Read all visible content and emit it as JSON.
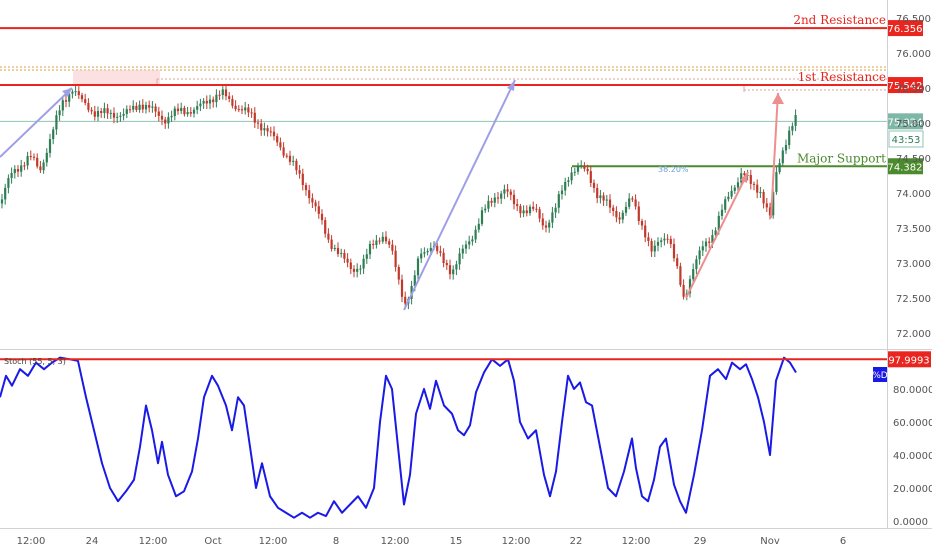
{
  "chart_data": [
    {
      "type": "candlestick",
      "panel": "price",
      "y_axis_ticks": [
        "76.500",
        "76.000",
        "75.500",
        "75.000",
        "74.500",
        "74.000",
        "73.500",
        "73.000",
        "72.500",
        "72.000"
      ],
      "y_tick_values": [
        76.5,
        76.0,
        75.5,
        75.0,
        74.5,
        74.0,
        73.5,
        73.0,
        72.5,
        72.0
      ],
      "ylim": [
        71.84,
        76.58
      ],
      "x_axis_ticks": [
        "12:00",
        "24",
        "12:00",
        "Oct",
        "12:00",
        "8",
        "12:00",
        "15",
        "12:00",
        "22",
        "12:00",
        "29",
        "Nov",
        "6"
      ],
      "close_path": [
        [
          0,
          73.85
        ],
        [
          6,
          74.08
        ],
        [
          12,
          74.28
        ],
        [
          22,
          74.42
        ],
        [
          30,
          74.52
        ],
        [
          40,
          74.32
        ],
        [
          52,
          74.85
        ],
        [
          62,
          75.28
        ],
        [
          72,
          75.5
        ],
        [
          82,
          75.3
        ],
        [
          95,
          75.15
        ],
        [
          110,
          75.13
        ],
        [
          125,
          75.12
        ],
        [
          140,
          75.28
        ],
        [
          150,
          75.2
        ],
        [
          165,
          75.05
        ],
        [
          180,
          75.18
        ],
        [
          195,
          75.18
        ],
        [
          210,
          75.35
        ],
        [
          222,
          75.42
        ],
        [
          235,
          75.25
        ],
        [
          250,
          75.12
        ],
        [
          262,
          74.95
        ],
        [
          278,
          74.72
        ],
        [
          292,
          74.42
        ],
        [
          305,
          74.1
        ],
        [
          318,
          73.7
        ],
        [
          328,
          73.35
        ],
        [
          340,
          73.1
        ],
        [
          352,
          72.92
        ],
        [
          362,
          72.95
        ],
        [
          372,
          73.28
        ],
        [
          382,
          73.4
        ],
        [
          392,
          73.15
        ],
        [
          400,
          72.7
        ],
        [
          405,
          72.42
        ],
        [
          412,
          72.62
        ],
        [
          420,
          73.15
        ],
        [
          432,
          73.25
        ],
        [
          442,
          73.05
        ],
        [
          452,
          72.88
        ],
        [
          462,
          73.15
        ],
        [
          472,
          73.38
        ],
        [
          482,
          73.7
        ],
        [
          495,
          73.95
        ],
        [
          505,
          74.05
        ],
        [
          515,
          73.82
        ],
        [
          525,
          73.75
        ],
        [
          535,
          73.75
        ],
        [
          545,
          73.52
        ],
        [
          555,
          73.75
        ],
        [
          562,
          74.05
        ],
        [
          570,
          74.3
        ],
        [
          580,
          74.35
        ],
        [
          588,
          74.3
        ],
        [
          598,
          73.95
        ],
        [
          610,
          73.8
        ],
        [
          620,
          73.65
        ],
        [
          632,
          73.92
        ],
        [
          642,
          73.55
        ],
        [
          652,
          73.12
        ],
        [
          660,
          73.35
        ],
        [
          668,
          73.4
        ],
        [
          676,
          72.95
        ],
        [
          684,
          72.48
        ],
        [
          692,
          72.9
        ],
        [
          702,
          73.2
        ],
        [
          712,
          73.4
        ],
        [
          722,
          73.75
        ],
        [
          732,
          74.05
        ],
        [
          742,
          74.3
        ],
        [
          752,
          74.1
        ],
        [
          760,
          74.05
        ],
        [
          766,
          73.8
        ],
        [
          770,
          73.65
        ],
        [
          776,
          74.25
        ],
        [
          782,
          74.6
        ],
        [
          790,
          74.9
        ],
        [
          796,
          75.05
        ]
      ],
      "hlines": [
        {
          "label": "2nd Resistance",
          "value": "76.356",
          "y": 76.356,
          "color": "#e8251e"
        },
        {
          "label": "1st Resistance",
          "value": "75.542",
          "y": 75.542,
          "color": "#e8251e"
        },
        {
          "label": "Major Support",
          "value": "74.382",
          "y": 74.382,
          "color": "#4c8a2e"
        },
        {
          "label": "",
          "value": "75.024",
          "y": 75.024,
          "color": "#7fb7a7"
        }
      ],
      "countdown": "43:53",
      "fib_label": "38.20%",
      "colors": {
        "up": "#2e7d55",
        "down": "#c0392b",
        "resistance": "#e8251e",
        "support": "#4c8a2e",
        "current": "#8fc4b4",
        "arrow_blue": "#9f9fe8",
        "arrow_red": "#ef8e8e"
      }
    },
    {
      "type": "line",
      "panel": "indicator",
      "title": "Stoch (55, 5, 3)",
      "series": [
        {
          "name": "%D",
          "color": "#1a1ae6"
        }
      ],
      "y_axis_ticks": [
        "80.0000",
        "60.0000",
        "40.0000",
        "20.0000",
        "0.0000"
      ],
      "y_tick_values": [
        80,
        60,
        40,
        20,
        0
      ],
      "ylim": [
        -3,
        100
      ],
      "level": {
        "value": "97.9993",
        "y": 97.9993,
        "color": "#e8251e"
      },
      "points": [
        [
          0,
          75
        ],
        [
          6,
          88
        ],
        [
          12,
          82
        ],
        [
          20,
          92
        ],
        [
          28,
          88
        ],
        [
          36,
          96
        ],
        [
          44,
          92
        ],
        [
          52,
          96
        ],
        [
          60,
          99
        ],
        [
          70,
          98
        ],
        [
          78,
          97
        ],
        [
          86,
          75
        ],
        [
          94,
          55
        ],
        [
          102,
          35
        ],
        [
          110,
          20
        ],
        [
          118,
          12
        ],
        [
          126,
          18
        ],
        [
          134,
          25
        ],
        [
          140,
          45
        ],
        [
          146,
          70
        ],
        [
          152,
          55
        ],
        [
          158,
          35
        ],
        [
          162,
          48
        ],
        [
          168,
          28
        ],
        [
          176,
          15
        ],
        [
          184,
          18
        ],
        [
          192,
          30
        ],
        [
          198,
          50
        ],
        [
          204,
          75
        ],
        [
          212,
          88
        ],
        [
          218,
          82
        ],
        [
          226,
          70
        ],
        [
          232,
          55
        ],
        [
          238,
          75
        ],
        [
          244,
          70
        ],
        [
          250,
          45
        ],
        [
          256,
          20
        ],
        [
          262,
          35
        ],
        [
          270,
          15
        ],
        [
          278,
          8
        ],
        [
          286,
          5
        ],
        [
          294,
          2
        ],
        [
          302,
          5
        ],
        [
          310,
          2
        ],
        [
          318,
          5
        ],
        [
          326,
          3
        ],
        [
          334,
          12
        ],
        [
          342,
          5
        ],
        [
          350,
          10
        ],
        [
          358,
          15
        ],
        [
          366,
          8
        ],
        [
          374,
          20
        ],
        [
          380,
          60
        ],
        [
          386,
          88
        ],
        [
          392,
          80
        ],
        [
          398,
          45
        ],
        [
          404,
          10
        ],
        [
          410,
          28
        ],
        [
          416,
          65
        ],
        [
          424,
          80
        ],
        [
          430,
          68
        ],
        [
          436,
          85
        ],
        [
          444,
          70
        ],
        [
          452,
          65
        ],
        [
          458,
          55
        ],
        [
          464,
          52
        ],
        [
          470,
          58
        ],
        [
          476,
          78
        ],
        [
          484,
          90
        ],
        [
          492,
          98
        ],
        [
          500,
          94
        ],
        [
          508,
          98
        ],
        [
          514,
          85
        ],
        [
          520,
          60
        ],
        [
          528,
          50
        ],
        [
          536,
          55
        ],
        [
          544,
          28
        ],
        [
          550,
          15
        ],
        [
          556,
          30
        ],
        [
          562,
          60
        ],
        [
          568,
          88
        ],
        [
          574,
          80
        ],
        [
          580,
          84
        ],
        [
          586,
          72
        ],
        [
          592,
          70
        ],
        [
          600,
          45
        ],
        [
          608,
          20
        ],
        [
          616,
          15
        ],
        [
          624,
          30
        ],
        [
          632,
          50
        ],
        [
          636,
          32
        ],
        [
          642,
          15
        ],
        [
          648,
          12
        ],
        [
          654,
          25
        ],
        [
          660,
          45
        ],
        [
          666,
          50
        ],
        [
          674,
          22
        ],
        [
          680,
          12
        ],
        [
          686,
          5
        ],
        [
          694,
          28
        ],
        [
          702,
          55
        ],
        [
          710,
          88
        ],
        [
          718,
          92
        ],
        [
          726,
          86
        ],
        [
          732,
          96
        ],
        [
          740,
          92
        ],
        [
          746,
          95
        ],
        [
          752,
          86
        ],
        [
          758,
          75
        ],
        [
          764,
          60
        ],
        [
          770,
          40
        ],
        [
          776,
          85
        ],
        [
          784,
          99
        ],
        [
          790,
          96
        ],
        [
          796,
          90
        ]
      ]
    }
  ]
}
